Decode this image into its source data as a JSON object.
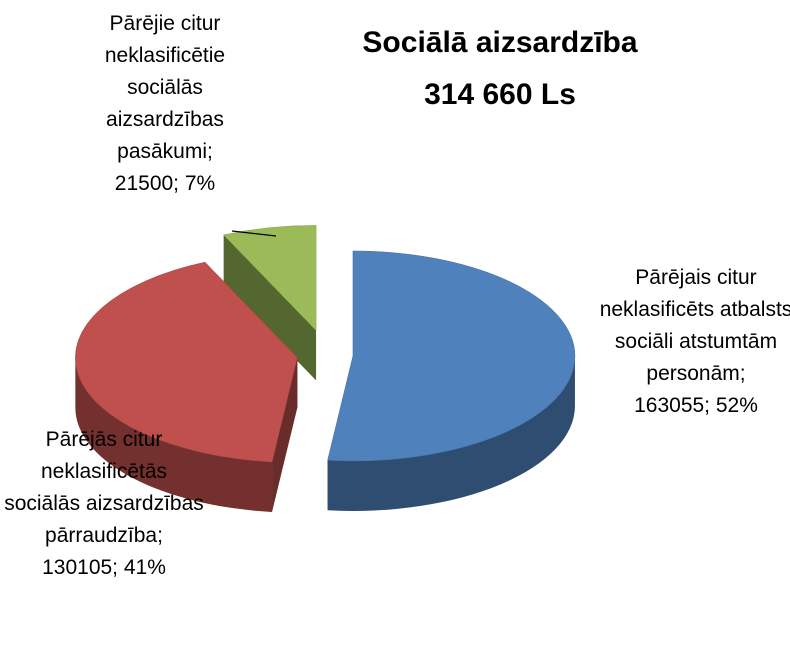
{
  "chart_data": {
    "type": "pie",
    "title": "Sociālā aizsardzība",
    "subtitle": "314 660 Ls",
    "categories": [
      "Pārējais citur neklasificēts atbalsts sociāli atstumtām personām;",
      "Pārējās citur neklasificētās sociālās aizsardzības pārraudzība;",
      "Pārējie citur neklasificētie sociālās aizsardzības pasākumi;"
    ],
    "values": [
      163055,
      130105,
      21500
    ],
    "value_labels": [
      "163055; 52%",
      "130105; 41%",
      "21500; 7%"
    ],
    "colors": [
      "#4f81bd",
      "#c0504d",
      "#9bbb59"
    ]
  }
}
